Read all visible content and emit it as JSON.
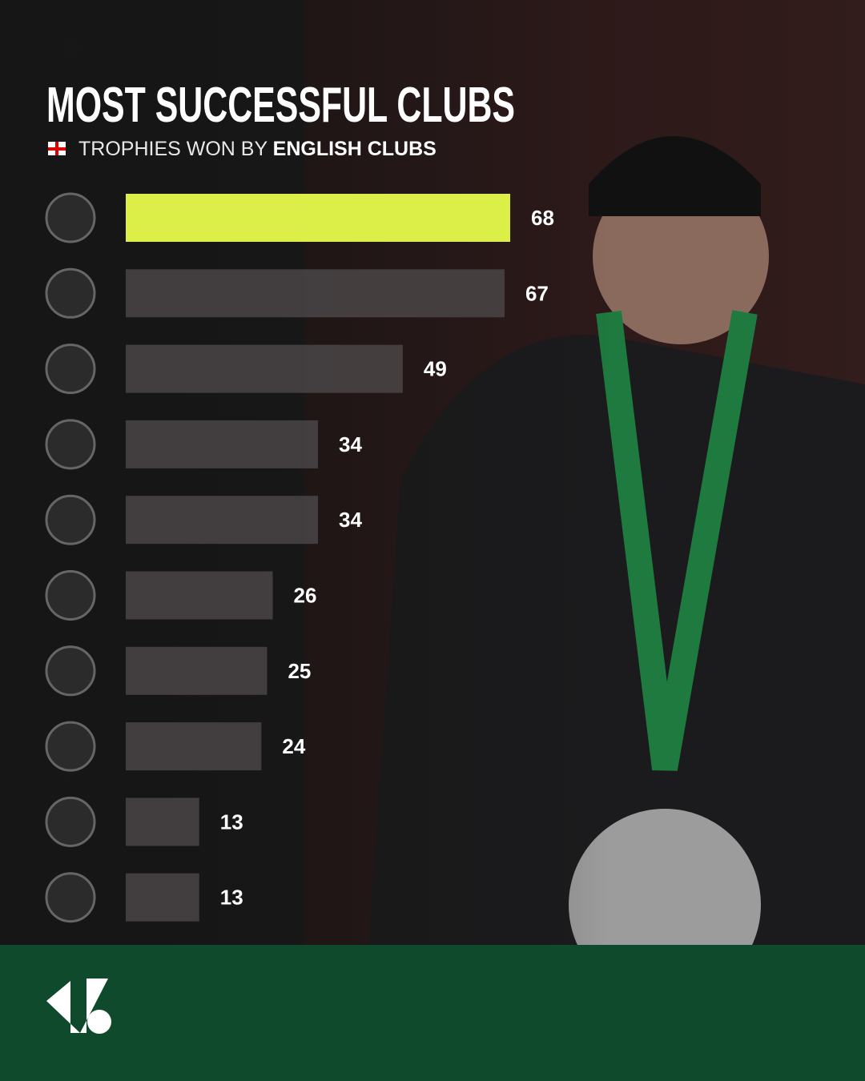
{
  "chart_data": {
    "type": "bar",
    "orientation": "horizontal",
    "title": "MOST SUCCESSFUL CLUBS",
    "subtitle": [
      "TROPHIES WON BY",
      "ENGLISH CLUBS"
    ],
    "categories": [
      null,
      null,
      null,
      null,
      null,
      null,
      null,
      null,
      null,
      null
    ],
    "values": [
      68,
      67,
      49,
      34,
      34,
      26,
      25,
      24,
      13,
      13
    ],
    "colors": [
      "#dcef48",
      "#4a4546",
      "#4a4546",
      "#4a4546",
      "#4a4546",
      "#4a4546",
      "#4a4546",
      "#4a4546",
      "#4a4546",
      "#4a4546"
    ],
    "grid": false
  }
}
